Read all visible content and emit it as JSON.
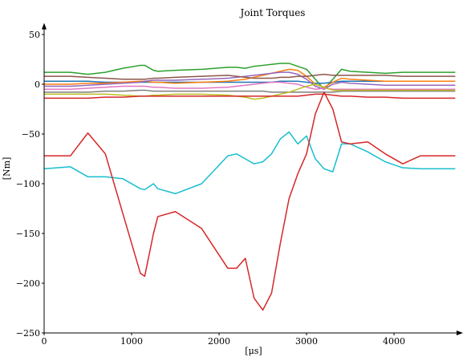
{
  "chart_data": {
    "type": "line",
    "title": "Joint Torques",
    "x_label": "[μs]",
    "y_label": "[Nm]",
    "x": [
      0,
      300,
      500,
      700,
      900,
      1100,
      1150,
      1250,
      1300,
      1500,
      1800,
      2100,
      2200,
      2300,
      2400,
      2500,
      2600,
      2700,
      2800,
      2900,
      3000,
      3100,
      3200,
      3300,
      3400,
      3500,
      3700,
      3900,
      4100,
      4300,
      4500,
      4700
    ],
    "xlim": [
      0,
      4770
    ],
    "ylim": [
      -250,
      60
    ],
    "xticks": [
      0,
      1000,
      2000,
      3000,
      4000
    ],
    "yticks": [
      50,
      0,
      {
        "value": -50,
        "label": "−50"
      },
      {
        "value": -100,
        "label": "−100"
      },
      {
        "value": -150,
        "label": "−150"
      },
      {
        "value": -200,
        "label": "−200"
      },
      {
        "value": -250,
        "label": "−250"
      }
    ],
    "series": [
      {
        "color": "#2ca02c",
        "values": [
          12,
          12,
          10,
          12,
          16,
          19,
          19,
          14,
          13,
          14,
          15,
          17,
          17,
          16,
          18,
          19,
          20,
          21,
          21,
          18,
          15,
          5,
          -5,
          5,
          15,
          13,
          12,
          11,
          12,
          12,
          12,
          12
        ]
      },
      {
        "color": "#1f77b4",
        "values": [
          3,
          3,
          3,
          2,
          2,
          2,
          2,
          2,
          2,
          2,
          2,
          2,
          2,
          2,
          2,
          2,
          2,
          3,
          3,
          3,
          2,
          1,
          1,
          2,
          3,
          3,
          3,
          3,
          3,
          3,
          3,
          3
        ]
      },
      {
        "color": "#ff7f0e",
        "values": [
          0,
          0,
          1,
          1,
          2,
          3,
          3,
          2,
          2,
          1,
          2,
          3,
          4,
          5,
          7,
          9,
          11,
          13,
          15,
          14,
          8,
          0,
          -3,
          2,
          6,
          5,
          4,
          3,
          3,
          3,
          3,
          3
        ]
      },
      {
        "color": "#9467bd",
        "values": [
          -2,
          -2,
          -1,
          0,
          1,
          2,
          3,
          4,
          4,
          4,
          5,
          6,
          7,
          8,
          9,
          10,
          11,
          12,
          12,
          10,
          5,
          -2,
          -5,
          0,
          2,
          1,
          0,
          -1,
          -1,
          -1,
          -1,
          -1
        ]
      },
      {
        "color": "#8c564b",
        "values": [
          8,
          8,
          7,
          6,
          5,
          5,
          5,
          6,
          6,
          7,
          8,
          9,
          8,
          7,
          6,
          6,
          6,
          7,
          7,
          8,
          8,
          9,
          10,
          9,
          9,
          9,
          9,
          9,
          8,
          8,
          8,
          8
        ]
      },
      {
        "color": "#e377c2",
        "values": [
          -5,
          -5,
          -4,
          -3,
          -2,
          -2,
          -2,
          -3,
          -3,
          -4,
          -4,
          -3,
          -2,
          -1,
          0,
          1,
          2,
          2,
          1,
          0,
          -3,
          -5,
          -4,
          -5,
          -5,
          -5,
          -5,
          -5,
          -5,
          -5,
          -5,
          -5
        ]
      },
      {
        "color": "#7f7f7f",
        "values": [
          -8,
          -8,
          -8,
          -7,
          -7,
          -6,
          -6,
          -7,
          -7,
          -7,
          -7,
          -7,
          -7,
          -7,
          -7,
          -7,
          -8,
          -8,
          -8,
          -8,
          -8,
          -8,
          -8,
          -8,
          -7,
          -7,
          -7,
          -7,
          -7,
          -7,
          -7,
          -7
        ]
      },
      {
        "color": "#bcbd22",
        "values": [
          -10,
          -10,
          -10,
          -10,
          -11,
          -12,
          -12,
          -11,
          -11,
          -10,
          -10,
          -11,
          -12,
          -13,
          -15,
          -14,
          -12,
          -10,
          -8,
          -5,
          -2,
          0,
          -3,
          -6,
          -6,
          -6,
          -6,
          -6,
          -6,
          -6,
          -6,
          -6
        ]
      },
      {
        "color": "#17becf",
        "values": [
          -85,
          -83,
          -93,
          -93,
          -95,
          -105,
          -106,
          -100,
          -105,
          -110,
          -100,
          -72,
          -70,
          -75,
          -80,
          -78,
          -70,
          -55,
          -48,
          -60,
          -52,
          -75,
          -85,
          -88,
          -60,
          -60,
          -68,
          -78,
          -84,
          -85,
          -85,
          -85
        ]
      },
      {
        "color": "#d62728",
        "values": [
          -72,
          -72,
          -49,
          -70,
          -130,
          -190,
          -193,
          -150,
          -133,
          -128,
          -145,
          -185,
          -185,
          -175,
          -215,
          -227,
          -210,
          -160,
          -115,
          -90,
          -70,
          -30,
          -8,
          -25,
          -58,
          -60,
          -58,
          -70,
          -80,
          -72,
          -72,
          -72
        ]
      },
      {
        "color": "#d62728",
        "values": [
          -14,
          -14,
          -14,
          -13,
          -13,
          -12,
          -12,
          -12,
          -12,
          -12,
          -12,
          -12,
          -12,
          -12,
          -12,
          -12,
          -12,
          -12,
          -12,
          -12,
          -11,
          -10,
          -10,
          -11,
          -12,
          -12,
          -13,
          -13,
          -14,
          -14,
          -14,
          -14
        ]
      }
    ]
  }
}
